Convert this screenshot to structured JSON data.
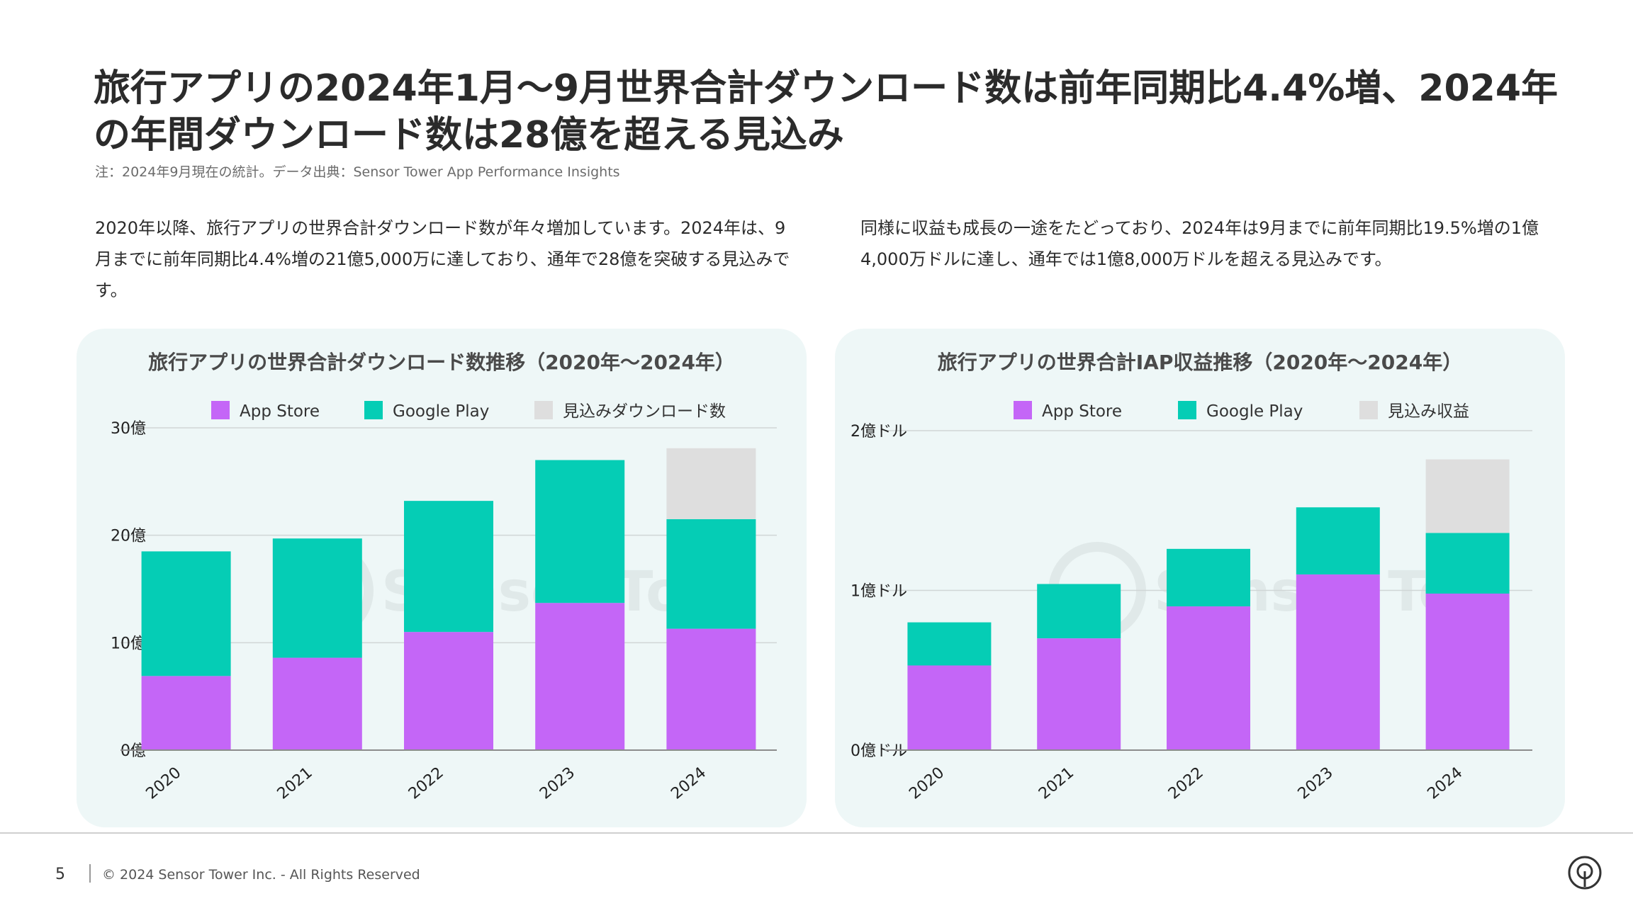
{
  "title": "旅行アプリの2024年1月〜9月世界合計ダウンロード数は前年同期比4.4%増、2024年の年間ダウンロード数は28億を超える見込み",
  "note": "注：2024年9月現在の統計。データ出典：Sensor Tower App Performance Insights",
  "desc_left": "2020年以降、旅行アプリの世界合計ダウンロード数が年々増加しています。2024年は、9月までに前年同期比4.4%増の21億5,000万に達しており、通年で28億を突破する見込みです。",
  "desc_right": "同様に収益も成長の一途をたどっており、2024年は9月までに前年同期比19.5%増の1億4,000万ドルに達し、通年では1億8,000万ドルを超える見込みです。",
  "colors": {
    "app_store": "#c466f7",
    "google_play": "#05cdb5",
    "forecast": "#dedede"
  },
  "footer": {
    "page": "5",
    "copyright": "© 2024 Sensor Tower Inc. - All Rights Reserved"
  },
  "chart_data": [
    {
      "type": "bar",
      "stacked": true,
      "title": "旅行アプリの世界合計ダウンロード数推移（2020年〜2024年）",
      "categories": [
        "2020",
        "2021",
        "2022",
        "2023",
        "2024"
      ],
      "series": [
        {
          "name": "App Store",
          "values": [
            6.9,
            8.6,
            11.0,
            13.7,
            11.3
          ]
        },
        {
          "name": "Google Play",
          "values": [
            11.6,
            11.1,
            12.2,
            13.3,
            10.2
          ]
        },
        {
          "name": "見込みダウンロード数",
          "values": [
            0,
            0,
            0,
            0,
            6.6
          ]
        }
      ],
      "yticks": [
        "0億",
        "10億",
        "20億",
        "30億"
      ],
      "ylim": [
        0,
        30
      ],
      "legend": "top",
      "grid": true
    },
    {
      "type": "bar",
      "stacked": true,
      "title": "旅行アプリの世界合計IAP収益推移（2020年〜2024年）",
      "categories": [
        "2020",
        "2021",
        "2022",
        "2023",
        "2024"
      ],
      "series": [
        {
          "name": "App Store",
          "values": [
            0.53,
            0.7,
            0.9,
            1.1,
            0.98
          ]
        },
        {
          "name": "Google Play",
          "values": [
            0.27,
            0.34,
            0.36,
            0.42,
            0.38
          ]
        },
        {
          "name": "見込み収益",
          "values": [
            0,
            0,
            0,
            0,
            0.46
          ]
        }
      ],
      "yticks": [
        "0億ドル",
        "1億ドル",
        "2億ドル"
      ],
      "ylim": [
        0,
        2
      ],
      "legend": "top",
      "grid": true
    }
  ]
}
